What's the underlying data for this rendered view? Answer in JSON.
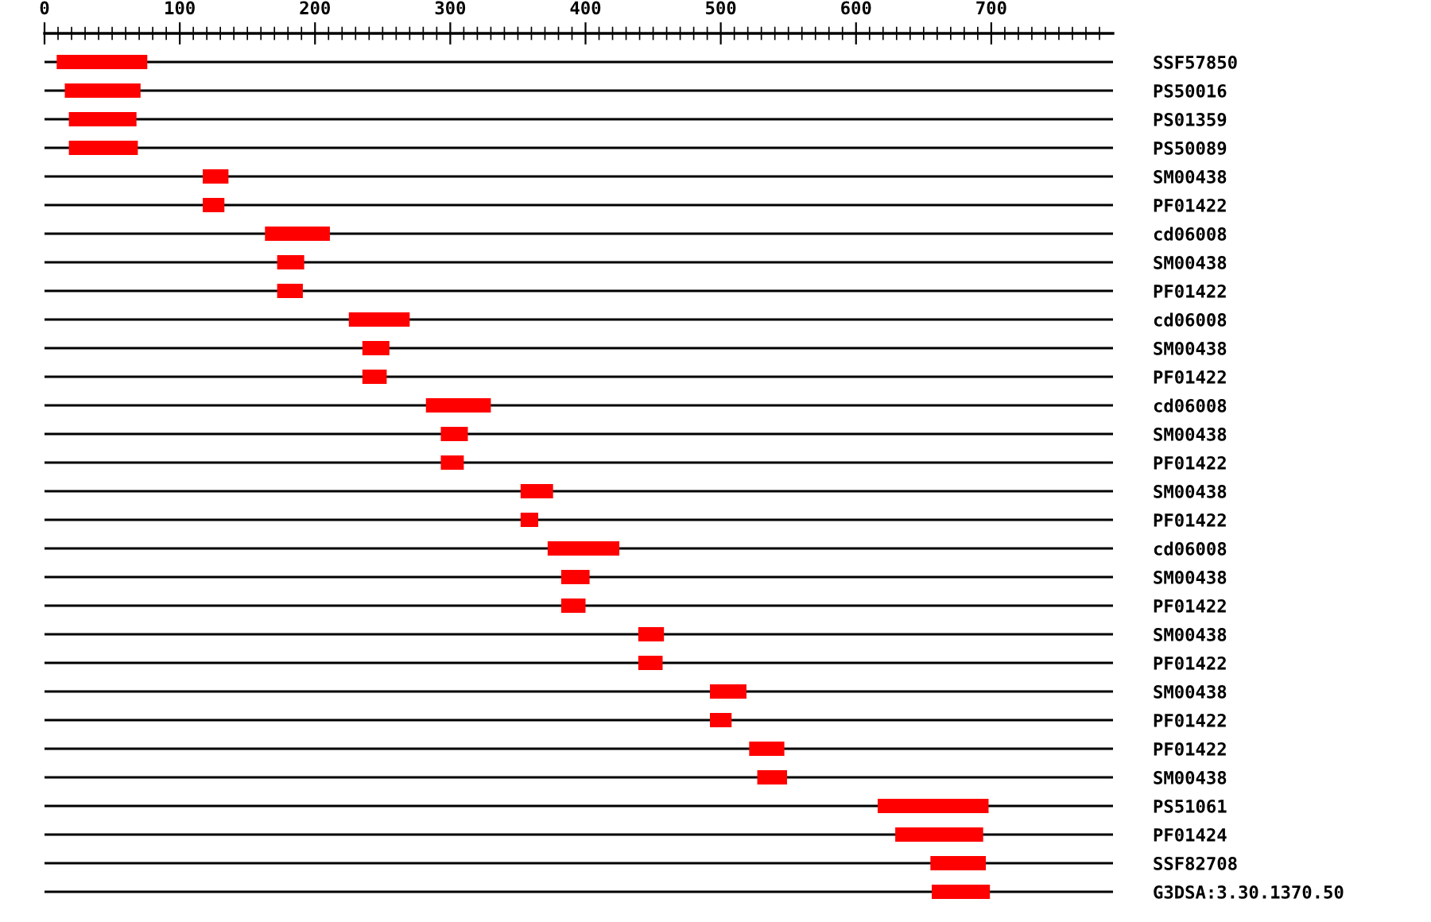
{
  "chart_data": {
    "type": "bar",
    "orientation": "horizontal",
    "categories": [
      "SSF57850",
      "PS50016",
      "PS01359",
      "PS50089",
      "SM00438",
      "PF01422",
      "cd06008",
      "SM00438",
      "PF01422",
      "cd06008",
      "SM00438",
      "PF01422",
      "cd06008",
      "SM00438",
      "PF01422",
      "SM00438",
      "PF01422",
      "cd06008",
      "SM00438",
      "PF01422",
      "SM00438",
      "PF01422",
      "SM00438",
      "PF01422",
      "PF01422",
      "SM00438",
      "PS51061",
      "PF01424",
      "SSF82708",
      "G3DSA:3.30.1370.50"
    ],
    "base": [
      9,
      15,
      18,
      18,
      117,
      117,
      163,
      172,
      172,
      225,
      235,
      235,
      282,
      293,
      293,
      352,
      352,
      372,
      382,
      382,
      439,
      439,
      492,
      492,
      521,
      527,
      616,
      629,
      655,
      656
    ],
    "values": [
      67,
      56,
      50,
      51,
      19,
      16,
      48,
      20,
      19,
      45,
      20,
      18,
      48,
      20,
      17,
      24,
      13,
      53,
      21,
      18,
      19,
      18,
      27,
      16,
      26,
      22,
      82,
      65,
      41,
      43
    ],
    "color": "#ff0000",
    "xlim": [
      0,
      790
    ],
    "xticks": [
      0,
      {
        "value": 10,
        "label": null
      },
      {
        "value": 20,
        "label": null
      },
      {
        "value": 30,
        "label": null
      },
      {
        "value": 40,
        "label": null
      },
      {
        "value": 50,
        "label": null
      },
      {
        "value": 60,
        "label": null
      },
      {
        "value": 70,
        "label": null
      },
      {
        "value": 80,
        "label": null
      },
      {
        "value": 90,
        "label": null
      },
      100,
      {
        "value": 110,
        "label": null
      },
      {
        "value": 120,
        "label": null
      },
      {
        "value": 130,
        "label": null
      },
      {
        "value": 140,
        "label": null
      },
      {
        "value": 150,
        "label": null
      },
      {
        "value": 160,
        "label": null
      },
      {
        "value": 170,
        "label": null
      },
      {
        "value": 180,
        "label": null
      },
      {
        "value": 190,
        "label": null
      },
      200,
      {
        "value": 210,
        "label": null
      },
      {
        "value": 220,
        "label": null
      },
      {
        "value": 230,
        "label": null
      },
      {
        "value": 240,
        "label": null
      },
      {
        "value": 250,
        "label": null
      },
      {
        "value": 260,
        "label": null
      },
      {
        "value": 270,
        "label": null
      },
      {
        "value": 280,
        "label": null
      },
      {
        "value": 290,
        "label": null
      },
      300,
      {
        "value": 310,
        "label": null
      },
      {
        "value": 320,
        "label": null
      },
      {
        "value": 330,
        "label": null
      },
      {
        "value": 340,
        "label": null
      },
      {
        "value": 350,
        "label": null
      },
      {
        "value": 360,
        "label": null
      },
      {
        "value": 370,
        "label": null
      },
      {
        "value": 380,
        "label": null
      },
      {
        "value": 390,
        "label": null
      },
      400,
      {
        "value": 410,
        "label": null
      },
      {
        "value": 420,
        "label": null
      },
      {
        "value": 430,
        "label": null
      },
      {
        "value": 440,
        "label": null
      },
      {
        "value": 450,
        "label": null
      },
      {
        "value": 460,
        "label": null
      },
      {
        "value": 470,
        "label": null
      },
      {
        "value": 480,
        "label": null
      },
      {
        "value": 490,
        "label": null
      },
      500,
      {
        "value": 510,
        "label": null
      },
      {
        "value": 520,
        "label": null
      },
      {
        "value": 530,
        "label": null
      },
      {
        "value": 540,
        "label": null
      },
      {
        "value": 550,
        "label": null
      },
      {
        "value": 560,
        "label": null
      },
      {
        "value": 570,
        "label": null
      },
      {
        "value": 580,
        "label": null
      },
      {
        "value": 590,
        "label": null
      },
      600,
      {
        "value": 610,
        "label": null
      },
      {
        "value": 620,
        "label": null
      },
      {
        "value": 630,
        "label": null
      },
      {
        "value": 640,
        "label": null
      },
      {
        "value": 650,
        "label": null
      },
      {
        "value": 660,
        "label": null
      },
      {
        "value": 670,
        "label": null
      },
      {
        "value": 680,
        "label": null
      },
      {
        "value": 690,
        "label": null
      },
      700,
      {
        "value": 710,
        "label": null
      },
      {
        "value": 720,
        "label": null
      },
      {
        "value": 730,
        "label": null
      },
      {
        "value": 740,
        "label": null
      },
      {
        "value": 750,
        "label": null
      },
      {
        "value": 760,
        "label": null
      },
      {
        "value": 770,
        "label": null
      },
      {
        "value": 780,
        "label": null
      }
    ],
    "grid": "y"
  }
}
